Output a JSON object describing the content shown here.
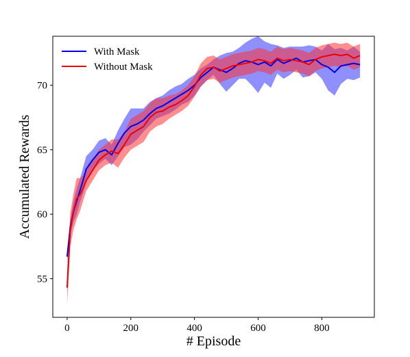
{
  "chart_data": {
    "type": "line",
    "title": "",
    "xlabel": "# Episode",
    "ylabel": "Accumulated Rewards",
    "xlim": [
      -45,
      965
    ],
    "ylim": [
      52,
      73.8
    ],
    "xticks": [
      0,
      200,
      400,
      600,
      800
    ],
    "yticks": [
      55,
      60,
      65,
      70
    ],
    "grid": false,
    "legend_position": "top-left",
    "series": [
      {
        "name": "With Mask",
        "color": "#0000ee",
        "band_color": "#3333ff",
        "x": [
          0,
          10,
          20,
          30,
          40,
          50,
          60,
          80,
          100,
          120,
          140,
          160,
          180,
          200,
          220,
          240,
          260,
          280,
          300,
          320,
          340,
          360,
          380,
          400,
          420,
          440,
          460,
          480,
          500,
          520,
          540,
          560,
          580,
          600,
          620,
          640,
          660,
          680,
          700,
          720,
          740,
          760,
          780,
          800,
          820,
          840,
          860,
          880,
          900,
          920
        ],
        "y": [
          56.7,
          59.0,
          60.2,
          61.0,
          61.8,
          62.6,
          63.5,
          64.2,
          64.8,
          65.0,
          64.6,
          65.5,
          66.3,
          66.8,
          67.0,
          67.3,
          67.8,
          68.2,
          68.4,
          68.7,
          69.0,
          69.3,
          69.6,
          70.0,
          70.6,
          71.0,
          71.4,
          71.2,
          71.0,
          71.3,
          71.7,
          71.9,
          71.8,
          71.6,
          71.8,
          71.5,
          72.0,
          71.7,
          71.9,
          72.1,
          71.8,
          71.9,
          72.0,
          71.6,
          71.4,
          71.0,
          71.5,
          71.6,
          71.7,
          71.6
        ],
        "lower": [
          56.3,
          58.4,
          59.4,
          60.0,
          60.9,
          61.6,
          62.5,
          63.4,
          63.9,
          64.3,
          63.8,
          64.5,
          65.2,
          65.4,
          65.8,
          66.4,
          66.9,
          67.4,
          67.6,
          67.8,
          68.1,
          68.5,
          68.7,
          69.2,
          69.9,
          70.4,
          70.8,
          70.1,
          69.5,
          70.0,
          70.5,
          70.5,
          70.0,
          69.4,
          70.2,
          69.8,
          70.9,
          70.5,
          70.8,
          71.2,
          70.6,
          70.7,
          71.0,
          70.5,
          69.6,
          69.2,
          70.1,
          70.5,
          70.4,
          70.6
        ],
        "upper": [
          57.1,
          59.6,
          61.0,
          62.0,
          62.7,
          63.6,
          64.5,
          65.0,
          65.7,
          65.9,
          65.4,
          66.5,
          67.4,
          68.2,
          68.2,
          68.2,
          68.7,
          69.0,
          69.2,
          69.6,
          69.9,
          70.1,
          70.5,
          70.8,
          71.3,
          71.6,
          72.0,
          72.3,
          72.5,
          72.6,
          72.9,
          73.3,
          73.6,
          73.8,
          73.4,
          73.2,
          73.1,
          72.9,
          73.0,
          73.0,
          73.0,
          73.1,
          73.0,
          72.7,
          73.2,
          72.8,
          72.9,
          72.7,
          73.0,
          72.6
        ]
      },
      {
        "name": "Without Mask",
        "color": "#ee0000",
        "band_color": "#ff3333",
        "x": [
          0,
          10,
          20,
          30,
          40,
          50,
          60,
          80,
          100,
          120,
          140,
          160,
          180,
          200,
          220,
          240,
          260,
          280,
          300,
          320,
          340,
          360,
          380,
          400,
          420,
          440,
          460,
          480,
          500,
          520,
          540,
          560,
          580,
          600,
          620,
          640,
          660,
          680,
          700,
          720,
          740,
          760,
          780,
          800,
          820,
          840,
          860,
          880,
          900,
          920
        ],
        "y": [
          54.3,
          58.8,
          60.2,
          61.2,
          61.5,
          62.0,
          62.6,
          63.4,
          64.2,
          64.6,
          64.9,
          64.7,
          65.4,
          66.2,
          66.5,
          66.8,
          67.5,
          67.9,
          68.0,
          68.3,
          68.5,
          68.8,
          69.2,
          69.9,
          70.8,
          71.3,
          71.4,
          71.1,
          71.3,
          71.5,
          71.6,
          71.7,
          71.8,
          72.0,
          71.9,
          71.7,
          72.1,
          71.9,
          72.0,
          71.9,
          71.8,
          71.6,
          72.0,
          72.2,
          72.3,
          72.4,
          72.3,
          72.4,
          72.1,
          72.3
        ],
        "lower": [
          53.0,
          57.5,
          58.8,
          59.6,
          60.2,
          61.0,
          61.8,
          62.6,
          63.4,
          63.8,
          64.0,
          63.6,
          64.4,
          65.0,
          65.3,
          65.6,
          66.4,
          66.8,
          67.0,
          67.4,
          67.7,
          68.0,
          68.4,
          69.1,
          69.9,
          70.4,
          70.5,
          70.2,
          70.4,
          70.6,
          70.7,
          70.8,
          70.9,
          71.1,
          71.0,
          70.8,
          71.2,
          71.0,
          71.1,
          71.0,
          70.9,
          70.7,
          71.1,
          71.3,
          71.4,
          71.5,
          71.4,
          71.5,
          71.2,
          71.4
        ],
        "upper": [
          55.6,
          60.1,
          61.6,
          62.8,
          62.8,
          63.0,
          63.4,
          64.2,
          65.0,
          65.4,
          65.8,
          65.8,
          66.4,
          67.4,
          67.7,
          68.0,
          68.6,
          69.0,
          69.0,
          69.2,
          69.3,
          69.6,
          70.0,
          70.7,
          71.7,
          72.2,
          72.3,
          72.0,
          72.2,
          72.4,
          72.5,
          72.6,
          72.7,
          72.9,
          72.8,
          72.6,
          73.0,
          72.8,
          72.9,
          72.8,
          72.7,
          72.5,
          72.9,
          73.1,
          73.2,
          73.3,
          73.2,
          73.3,
          73.0,
          73.2
        ]
      }
    ]
  }
}
